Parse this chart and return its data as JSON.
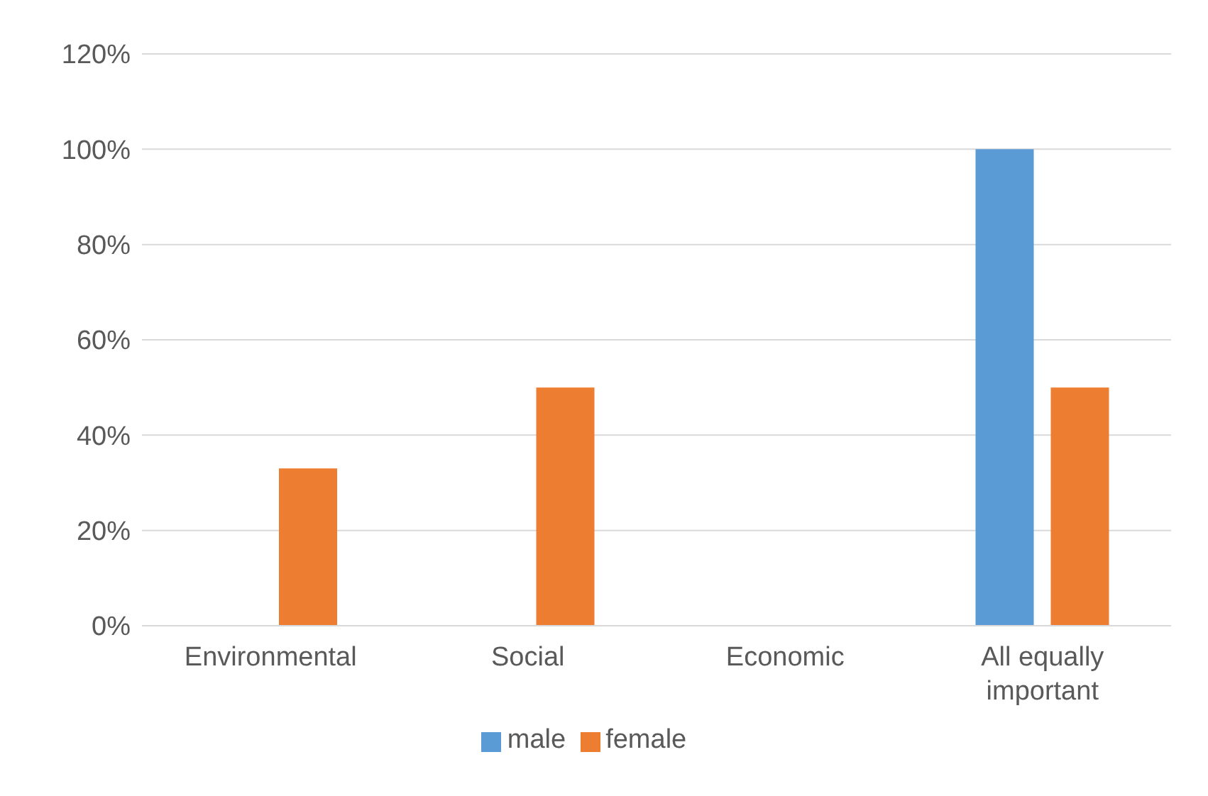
{
  "chart_data": {
    "type": "bar",
    "categories": [
      "Environmental",
      "Social",
      "Economic",
      "All equally important"
    ],
    "series": [
      {
        "name": "male",
        "color": "#5b9bd5",
        "values": [
          0,
          0,
          0,
          100
        ]
      },
      {
        "name": "female",
        "color": "#ed7d31",
        "values": [
          33,
          50,
          0,
          50
        ]
      }
    ],
    "ylim": [
      0,
      120
    ],
    "yticks": [
      {
        "value": 0,
        "label": "0%"
      },
      {
        "value": 20,
        "label": "20%"
      },
      {
        "value": 40,
        "label": "40%"
      },
      {
        "value": 60,
        "label": "60%"
      },
      {
        "value": 80,
        "label": "80%"
      },
      {
        "value": 100,
        "label": "100%"
      },
      {
        "value": 120,
        "label": "120%"
      }
    ],
    "grid": "y",
    "legend": "bottom"
  }
}
